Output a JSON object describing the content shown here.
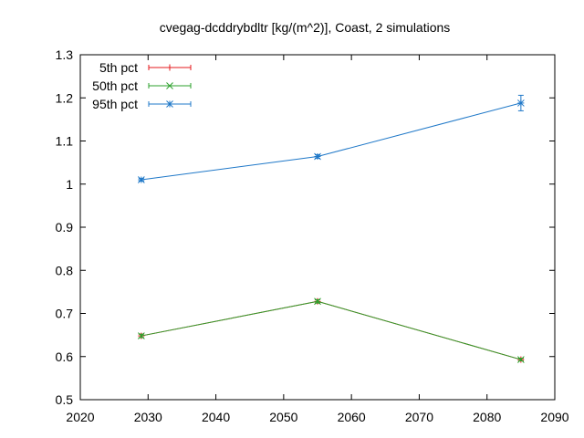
{
  "chart_data": {
    "type": "line",
    "title": "cvegag-dcddrybdltr [kg/(m^2)], Coast, 2 simulations",
    "xlabel": "",
    "ylabel": "",
    "xlim": [
      2020,
      2090
    ],
    "ylim": [
      0.5,
      1.3
    ],
    "xticks": [
      "2020",
      "2030",
      "2040",
      "2050",
      "2060",
      "2070",
      "2080",
      "2090"
    ],
    "yticks": [
      "0.5",
      "0.6",
      "0.7",
      "0.8",
      "0.9",
      "1",
      "1.1",
      "1.2",
      "1.3"
    ],
    "grid": false,
    "legend_position": "top-left",
    "x": [
      2029,
      2055,
      2085
    ],
    "series": [
      {
        "name": "5th pct",
        "color": "#e41a1c",
        "marker": "plus",
        "values": [
          0.648,
          0.728,
          0.593
        ],
        "err": [
          0.004,
          0.004,
          0.003
        ]
      },
      {
        "name": "50th pct",
        "color": "#2ca02c",
        "marker": "cross",
        "values": [
          0.648,
          0.728,
          0.593
        ],
        "err": [
          0.004,
          0.004,
          0.003
        ]
      },
      {
        "name": "95th pct",
        "color": "#1f78c8",
        "marker": "star",
        "values": [
          1.01,
          1.064,
          1.188
        ],
        "err": [
          0.003,
          0.004,
          0.018
        ]
      }
    ]
  }
}
